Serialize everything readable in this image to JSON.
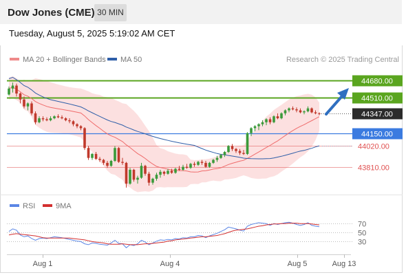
{
  "header": {
    "symbol": "Dow Jones (CME)",
    "interval": "30 MIN",
    "datetime": "Tuesday, August 5, 2025 5:19:02 AM CET"
  },
  "legend": {
    "ma20_bb": "MA 20 + Bollinger Bands",
    "ma50": "MA 50",
    "credit": "Research © 2025 Trading Central",
    "rsi": "RSI",
    "rsi_ma": "9MA"
  },
  "colors": {
    "up": "#3a9a3a",
    "down": "#c0392b",
    "target": "#5aa51f",
    "pivot": "#3b7be0",
    "support": "#e05050",
    "ma20": "#ef6b6b",
    "ma50": "#2e5ea8",
    "band": "#fbdada",
    "arrow": "#2f6fc0",
    "last_price_bg": "#2b2b2b",
    "rsi": "#5b86e5",
    "rsi_ma": "#d32f2f"
  },
  "chart_data": [
    {
      "type": "candlestick",
      "ylim": [
        43530,
        44800
      ],
      "x_ticks": [
        "Aug 1",
        "Aug 4",
        "Aug 5",
        "Aug 13"
      ],
      "grid": false,
      "levels": [
        {
          "label": "44680.00",
          "value": 44680,
          "kind": "target"
        },
        {
          "label": "44510.00",
          "value": 44510,
          "kind": "target"
        },
        {
          "label": "44347.00",
          "value": 44347,
          "kind": "last"
        },
        {
          "label": "44150.00",
          "value": 44150,
          "kind": "pivot"
        },
        {
          "label": "44020.00",
          "value": 44020,
          "kind": "support"
        },
        {
          "label": "43810.00",
          "value": 43810,
          "kind": "support"
        }
      ],
      "candles": [
        [
          44540,
          44620,
          44530,
          44600
        ],
        [
          44600,
          44660,
          44560,
          44630
        ],
        [
          44630,
          44650,
          44520,
          44550
        ],
        [
          44550,
          44560,
          44450,
          44490
        ],
        [
          44490,
          44520,
          44400,
          44420
        ],
        [
          44420,
          44460,
          44380,
          44450
        ],
        [
          44450,
          44470,
          44330,
          44350
        ],
        [
          44350,
          44370,
          44240,
          44260
        ],
        [
          44260,
          44320,
          44250,
          44300
        ],
        [
          44300,
          44320,
          44270,
          44290
        ],
        [
          44290,
          44310,
          44270,
          44280
        ],
        [
          44280,
          44320,
          44270,
          44300
        ],
        [
          44300,
          44330,
          44290,
          44320
        ],
        [
          44320,
          44340,
          44300,
          44310
        ],
        [
          44310,
          44330,
          44290,
          44300
        ],
        [
          44300,
          44310,
          44270,
          44280
        ],
        [
          44280,
          44300,
          44250,
          44270
        ],
        [
          44270,
          44280,
          44220,
          44240
        ],
        [
          44240,
          44250,
          44200,
          44220
        ],
        [
          44220,
          44230,
          44180,
          44200
        ],
        [
          44200,
          44210,
          43980,
          44000
        ],
        [
          44000,
          44020,
          43880,
          43900
        ],
        [
          43900,
          43950,
          43880,
          43940
        ],
        [
          43940,
          43960,
          43880,
          43890
        ],
        [
          43890,
          43910,
          43860,
          43880
        ],
        [
          43880,
          43890,
          43830,
          43850
        ],
        [
          43850,
          43870,
          43800,
          43820
        ],
        [
          43820,
          43880,
          43810,
          43870
        ],
        [
          43870,
          44020,
          43860,
          44000
        ],
        [
          44000,
          44010,
          43850,
          43860
        ],
        [
          43860,
          43900,
          43830,
          43850
        ],
        [
          43850,
          43860,
          43600,
          43640
        ],
        [
          43640,
          43800,
          43630,
          43780
        ],
        [
          43780,
          43790,
          43660,
          43680
        ],
        [
          43680,
          43720,
          43640,
          43700
        ],
        [
          43700,
          43850,
          43690,
          43820
        ],
        [
          43820,
          43830,
          43720,
          43740
        ],
        [
          43740,
          43760,
          43620,
          43650
        ],
        [
          43650,
          43700,
          43630,
          43690
        ],
        [
          43690,
          43750,
          43670,
          43730
        ],
        [
          43730,
          43780,
          43700,
          43760
        ],
        [
          43760,
          43770,
          43720,
          43740
        ],
        [
          43740,
          43790,
          43730,
          43770
        ],
        [
          43770,
          43790,
          43740,
          43750
        ],
        [
          43750,
          43800,
          43740,
          43790
        ],
        [
          43790,
          43820,
          43770,
          43780
        ],
        [
          43780,
          43830,
          43770,
          43810
        ],
        [
          43810,
          43840,
          43790,
          43800
        ],
        [
          43800,
          43850,
          43790,
          43840
        ],
        [
          43840,
          43860,
          43810,
          43830
        ],
        [
          43830,
          43870,
          43820,
          43860
        ],
        [
          43860,
          43880,
          43830,
          43850
        ],
        [
          43850,
          43870,
          43800,
          43810
        ],
        [
          43810,
          43860,
          43800,
          43850
        ],
        [
          43850,
          43890,
          43840,
          43880
        ],
        [
          43880,
          43920,
          43860,
          43900
        ],
        [
          43900,
          43940,
          43890,
          43930
        ],
        [
          43930,
          43970,
          43910,
          43960
        ],
        [
          43960,
          44030,
          43950,
          44020
        ],
        [
          44020,
          44040,
          43970,
          43990
        ],
        [
          43990,
          44000,
          43950,
          43970
        ],
        [
          43970,
          43990,
          43930,
          43950
        ],
        [
          43950,
          43980,
          43930,
          43940
        ],
        [
          43940,
          44160,
          43930,
          44150
        ],
        [
          44150,
          44210,
          44120,
          44200
        ],
        [
          44200,
          44230,
          44170,
          44220
        ],
        [
          44220,
          44250,
          44180,
          44240
        ],
        [
          44240,
          44280,
          44220,
          44260
        ],
        [
          44260,
          44300,
          44230,
          44290
        ],
        [
          44290,
          44310,
          44240,
          44260
        ],
        [
          44260,
          44330,
          44250,
          44320
        ],
        [
          44320,
          44350,
          44290,
          44300
        ],
        [
          44300,
          44360,
          44290,
          44350
        ],
        [
          44350,
          44390,
          44330,
          44380
        ],
        [
          44380,
          44410,
          44360,
          44400
        ],
        [
          44400,
          44420,
          44380,
          44390
        ],
        [
          44390,
          44410,
          44360,
          44380
        ],
        [
          44380,
          44400,
          44350,
          44360
        ],
        [
          44360,
          44380,
          44340,
          44370
        ],
        [
          44370,
          44420,
          44360,
          44400
        ],
        [
          44400,
          44410,
          44350,
          44360
        ],
        [
          44360,
          44380,
          44340,
          44350
        ],
        [
          44350,
          44360,
          44330,
          44347
        ]
      ]
    },
    {
      "type": "line",
      "ylim": [
        0,
        100
      ],
      "y_ticks": [
        70,
        50,
        30
      ],
      "series": [
        {
          "name": "RSI",
          "values": [
            52,
            58,
            55,
            44,
            40,
            42,
            36,
            32,
            36,
            37,
            36,
            38,
            40,
            39,
            38,
            36,
            34,
            32,
            30,
            29,
            24,
            22,
            26,
            25,
            23,
            22,
            21,
            26,
            32,
            25,
            24,
            15,
            22,
            20,
            24,
            32,
            28,
            22,
            26,
            30,
            33,
            32,
            34,
            33,
            36,
            35,
            38,
            37,
            40,
            40,
            43,
            42,
            38,
            42,
            45,
            48,
            52,
            56,
            62,
            60,
            58,
            55,
            53,
            64,
            68,
            70,
            72,
            71,
            70,
            66,
            70,
            68,
            70,
            72,
            73,
            71,
            68,
            66,
            68,
            72,
            66,
            64,
            63
          ]
        },
        {
          "name": "9MA",
          "values": [
            44,
            46,
            47,
            46,
            45,
            44,
            43,
            42,
            40,
            38,
            37,
            37,
            37,
            37,
            37,
            37,
            37,
            36,
            35,
            34,
            33,
            31,
            29,
            28,
            27,
            26,
            24,
            23,
            23,
            23,
            24,
            23,
            22,
            22,
            22,
            23,
            24,
            24,
            25,
            26,
            27,
            28,
            30,
            31,
            33,
            34,
            35,
            36,
            37,
            38,
            39,
            40,
            40,
            41,
            42,
            43,
            45,
            47,
            50,
            53,
            55,
            56,
            57,
            58,
            60,
            62,
            64,
            65,
            67,
            68,
            69,
            69,
            70,
            70,
            71,
            71,
            71,
            70,
            70,
            70,
            69,
            68,
            67
          ]
        }
      ]
    }
  ]
}
